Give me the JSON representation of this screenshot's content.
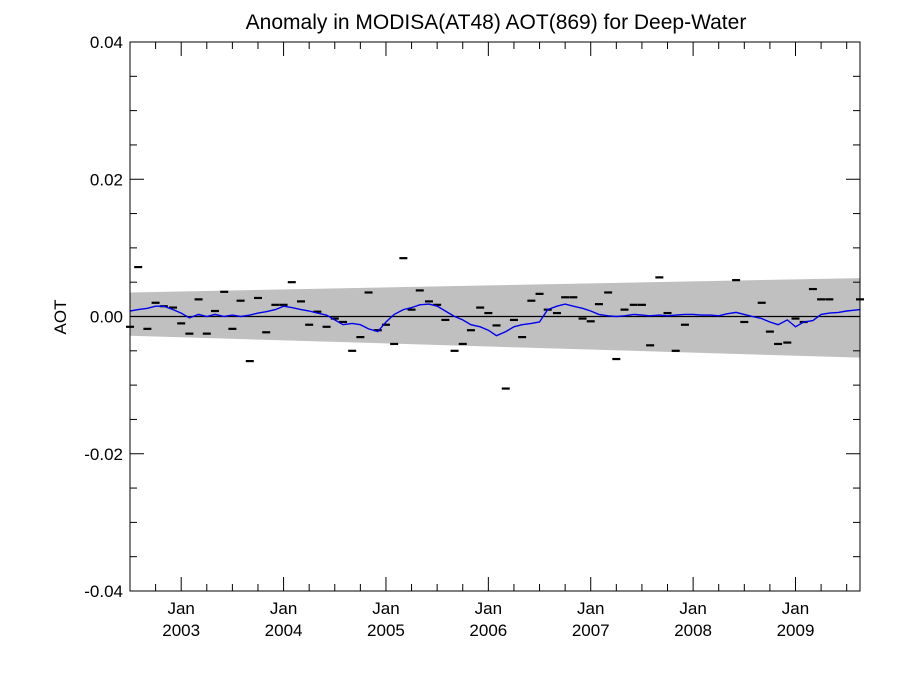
{
  "chart_data": {
    "type": "line",
    "title": "Anomaly in MODISA(AT48) AOT(869) for Deep-Water",
    "xlabel": "",
    "ylabel": "AOT",
    "xlim": [
      2002.5,
      2009.63
    ],
    "ylim": [
      -0.04,
      0.04
    ],
    "y_ticks": [
      {
        "value": 0.04,
        "label": "0.04"
      },
      {
        "value": 0.02,
        "label": "0.02"
      },
      {
        "value": 0.0,
        "label": "0.00"
      },
      {
        "value": -0.02,
        "label": "-0.02"
      },
      {
        "value": -0.04,
        "label": "-0.04"
      }
    ],
    "y_minor_step": 0.005,
    "x_ticks": [
      {
        "value": 2003.0,
        "month": "Jan",
        "year": "2003"
      },
      {
        "value": 2004.0,
        "month": "Jan",
        "year": "2004"
      },
      {
        "value": 2005.0,
        "month": "Jan",
        "year": "2005"
      },
      {
        "value": 2006.0,
        "month": "Jan",
        "year": "2006"
      },
      {
        "value": 2007.0,
        "month": "Jan",
        "year": "2007"
      },
      {
        "value": 2008.0,
        "month": "Jan",
        "year": "2008"
      },
      {
        "value": 2009.0,
        "month": "Jan",
        "year": "2009"
      }
    ],
    "x_minor_step": 0.25,
    "zero_line": 0.0,
    "envelope": {
      "color": "#c0c0c0",
      "upper": [
        {
          "x": 2002.5,
          "y": 0.0035
        },
        {
          "x": 2009.63,
          "y": 0.0056
        }
      ],
      "lower": [
        {
          "x": 2002.5,
          "y": -0.0028
        },
        {
          "x": 2009.63,
          "y": -0.006
        }
      ]
    },
    "series": [
      {
        "style": "dash-markers",
        "color": "#000000",
        "x": [
          2002.5,
          2002.58,
          2002.67,
          2002.75,
          2002.83,
          2002.92,
          2003.0,
          2003.08,
          2003.17,
          2003.25,
          2003.33,
          2003.42,
          2003.5,
          2003.58,
          2003.67,
          2003.75,
          2003.83,
          2003.92,
          2004.0,
          2004.08,
          2004.17,
          2004.25,
          2004.33,
          2004.42,
          2004.5,
          2004.58,
          2004.67,
          2004.75,
          2004.83,
          2004.92,
          2005.0,
          2005.08,
          2005.17,
          2005.25,
          2005.33,
          2005.42,
          2005.5,
          2005.58,
          2005.67,
          2005.75,
          2005.83,
          2005.92,
          2006.0,
          2006.08,
          2006.17,
          2006.25,
          2006.33,
          2006.42,
          2006.5,
          2006.58,
          2006.67,
          2006.75,
          2006.83,
          2006.92,
          2007.0,
          2007.08,
          2007.17,
          2007.25,
          2007.33,
          2007.42,
          2007.5,
          2007.58,
          2007.67,
          2007.75,
          2007.83,
          2007.92,
          2008.42,
          2008.5,
          2008.67,
          2008.75,
          2008.83,
          2008.92,
          2009.0,
          2009.08,
          2009.17,
          2009.25,
          2009.33,
          2009.63
        ],
        "values": [
          -0.0015,
          0.0072,
          -0.0018,
          0.002,
          0.0015,
          0.0013,
          -0.001,
          -0.0025,
          0.0025,
          -0.0025,
          0.0008,
          0.0036,
          -0.0018,
          0.0023,
          -0.0065,
          0.0027,
          -0.0023,
          0.0017,
          0.0017,
          0.005,
          0.0022,
          -0.0012,
          0.0007,
          -0.0015,
          -0.0003,
          -0.0008,
          -0.005,
          -0.003,
          0.0035,
          -0.002,
          -0.0012,
          -0.004,
          0.0085,
          0.001,
          0.0038,
          0.0022,
          0.0017,
          -0.0005,
          -0.005,
          -0.004,
          -0.002,
          0.0013,
          0.0005,
          -0.0013,
          -0.0105,
          -0.0005,
          -0.003,
          0.0023,
          0.0033,
          0.001,
          0.0005,
          0.0028,
          0.0028,
          -0.0003,
          -0.0007,
          0.0018,
          0.0035,
          -0.0062,
          0.001,
          0.0017,
          0.0017,
          -0.0042,
          0.0057,
          0.0005,
          -0.005,
          -0.0012,
          0.0053,
          -0.0008,
          0.002,
          -0.0022,
          -0.004,
          -0.0038,
          -0.0003,
          -0.0008,
          0.004,
          0.0025,
          0.0025,
          0.0025
        ]
      },
      {
        "style": "line",
        "color": "#0000ee",
        "x": [
          2002.5,
          2002.58,
          2002.67,
          2002.75,
          2002.83,
          2002.92,
          2003.0,
          2003.08,
          2003.17,
          2003.25,
          2003.33,
          2003.42,
          2003.5,
          2003.58,
          2003.67,
          2003.75,
          2003.83,
          2003.92,
          2004.0,
          2004.08,
          2004.17,
          2004.25,
          2004.33,
          2004.42,
          2004.5,
          2004.58,
          2004.67,
          2004.75,
          2004.83,
          2004.92,
          2005.0,
          2005.08,
          2005.17,
          2005.25,
          2005.33,
          2005.42,
          2005.5,
          2005.58,
          2005.67,
          2005.75,
          2005.83,
          2005.92,
          2006.0,
          2006.08,
          2006.17,
          2006.25,
          2006.33,
          2006.42,
          2006.5,
          2006.58,
          2006.67,
          2006.75,
          2006.83,
          2006.92,
          2007.0,
          2007.08,
          2007.17,
          2007.25,
          2007.33,
          2007.42,
          2007.5,
          2007.58,
          2007.67,
          2007.75,
          2007.83,
          2007.92,
          2008.0,
          2008.08,
          2008.17,
          2008.25,
          2008.33,
          2008.42,
          2008.5,
          2008.58,
          2008.67,
          2008.75,
          2008.83,
          2008.92,
          2009.0,
          2009.08,
          2009.17,
          2009.25,
          2009.33,
          2009.42,
          2009.5,
          2009.63
        ],
        "values": [
          0.0008,
          0.001,
          0.0012,
          0.0015,
          0.0015,
          0.001,
          0.0005,
          -0.0002,
          0.0003,
          0.0,
          0.0003,
          0.0,
          0.0002,
          0.0,
          0.0002,
          0.0005,
          0.0007,
          0.001,
          0.0015,
          0.0013,
          0.001,
          0.0008,
          0.0005,
          0.0002,
          -0.0005,
          -0.0012,
          -0.001,
          -0.0012,
          -0.0018,
          -0.0022,
          -0.0008,
          0.0003,
          0.001,
          0.0013,
          0.0017,
          0.0018,
          0.0015,
          0.0008,
          0.0,
          -0.0005,
          -0.0012,
          -0.0015,
          -0.002,
          -0.0028,
          -0.0022,
          -0.0015,
          -0.0012,
          -0.001,
          -0.0008,
          0.001,
          0.0015,
          0.0018,
          0.0015,
          0.0012,
          0.0008,
          0.0003,
          0.0001,
          0.0,
          0.0001,
          0.0003,
          0.0002,
          0.0001,
          0.0002,
          0.0001,
          0.0002,
          0.0003,
          0.0003,
          0.0002,
          0.0002,
          0.0001,
          0.0004,
          0.0006,
          0.0003,
          0.0,
          -0.0003,
          -0.0008,
          -0.0012,
          -0.0005,
          -0.0015,
          -0.0008,
          -0.0006,
          0.0003,
          0.0005,
          0.0006,
          0.0008,
          0.001
        ]
      }
    ]
  }
}
